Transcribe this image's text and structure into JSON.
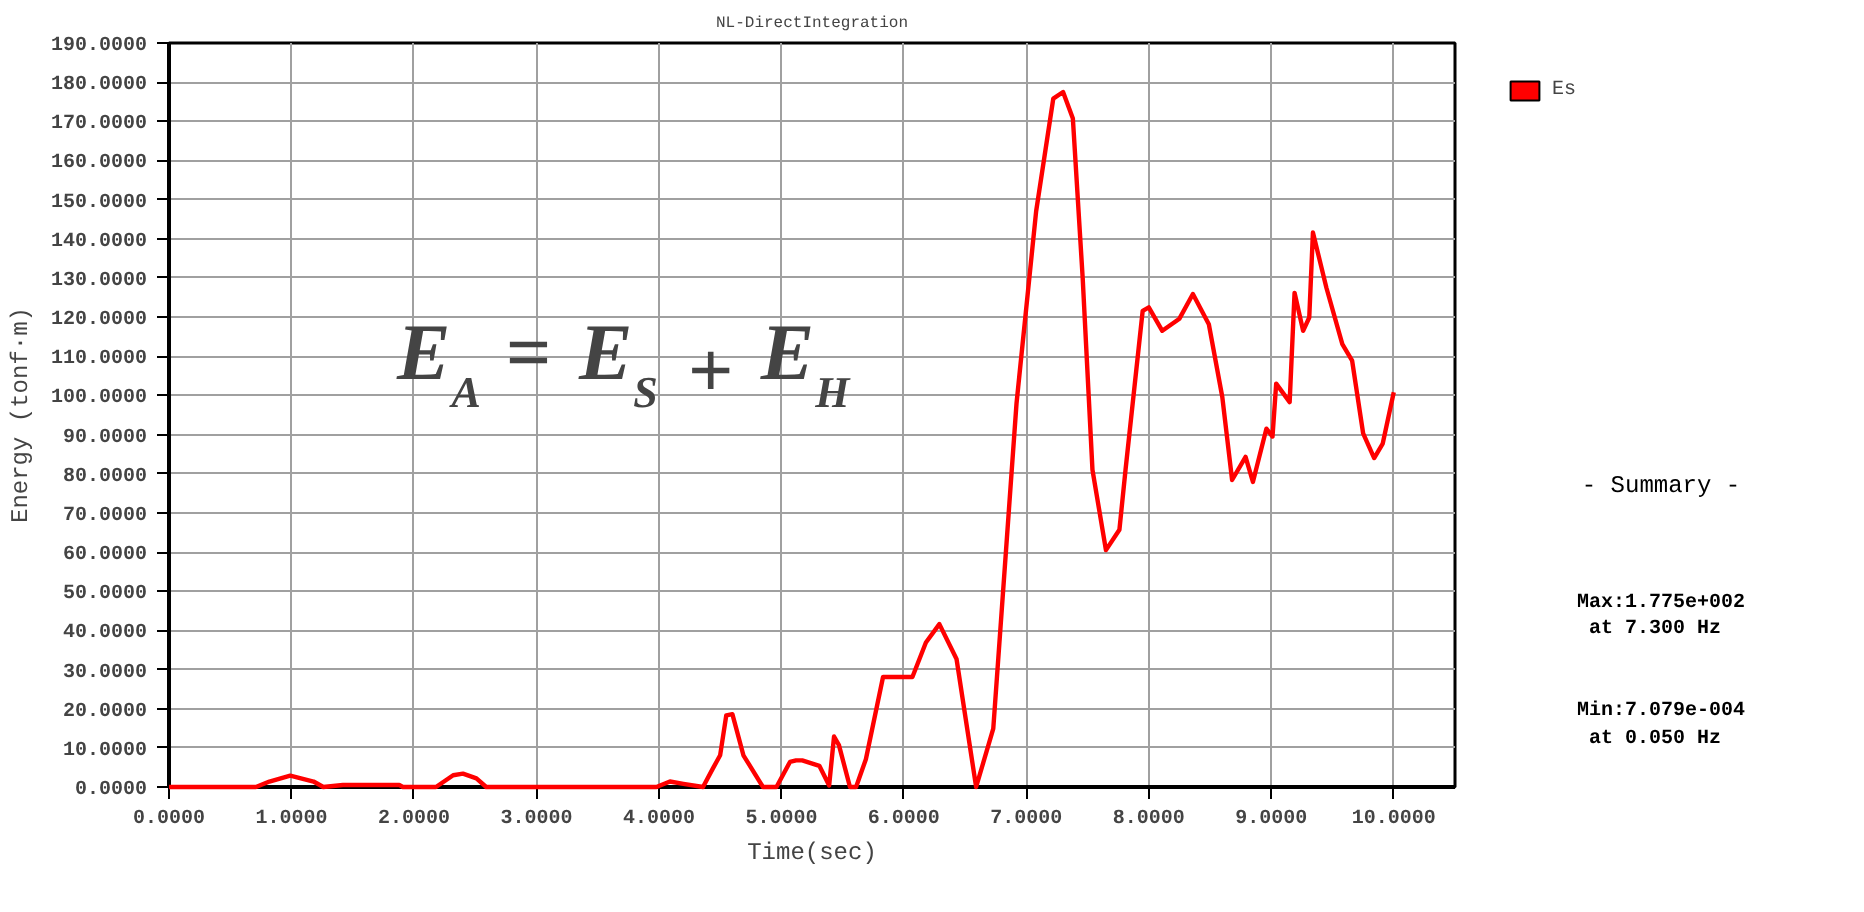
{
  "chart_data": {
    "type": "line",
    "title": "NL-DirectIntegration",
    "xlabel": "Time(sec)",
    "ylabel": "Energy (tonf·m)",
    "xlim": [
      0,
      10.5
    ],
    "ylim": [
      0,
      190
    ],
    "xticks": [
      {
        "value": 0,
        "label": "0.0000"
      },
      {
        "value": 1,
        "label": "1.0000"
      },
      {
        "value": 2,
        "label": "2.0000"
      },
      {
        "value": 3,
        "label": "3.0000"
      },
      {
        "value": 4,
        "label": "4.0000"
      },
      {
        "value": 5,
        "label": "5.0000"
      },
      {
        "value": 6,
        "label": "6.0000"
      },
      {
        "value": 7,
        "label": "7.0000"
      },
      {
        "value": 8,
        "label": "8.0000"
      },
      {
        "value": 9,
        "label": "9.0000"
      },
      {
        "value": 10,
        "label": "10.0000"
      }
    ],
    "yticks": [
      {
        "value": 0,
        "label": "0.0000"
      },
      {
        "value": 10,
        "label": "10.0000"
      },
      {
        "value": 20,
        "label": "20.0000"
      },
      {
        "value": 30,
        "label": "30.0000"
      },
      {
        "value": 40,
        "label": "40.0000"
      },
      {
        "value": 50,
        "label": "50.0000"
      },
      {
        "value": 60,
        "label": "60.0000"
      },
      {
        "value": 70,
        "label": "70.0000"
      },
      {
        "value": 80,
        "label": "80.0000"
      },
      {
        "value": 90,
        "label": "90.0000"
      },
      {
        "value": 100,
        "label": "100.0000"
      },
      {
        "value": 110,
        "label": "110.0000"
      },
      {
        "value": 120,
        "label": "120.0000"
      },
      {
        "value": 130,
        "label": "130.0000"
      },
      {
        "value": 140,
        "label": "140.0000"
      },
      {
        "value": 150,
        "label": "150.0000"
      },
      {
        "value": 160,
        "label": "160.0000"
      },
      {
        "value": 170,
        "label": "170.0000"
      },
      {
        "value": 180,
        "label": "180.0000"
      },
      {
        "value": 190,
        "label": "190.0000"
      }
    ],
    "grid": true,
    "legend": "top right",
    "marker": "none",
    "line_style": "solid",
    "series": [
      {
        "name": "Es",
        "color": "#ff0000",
        "x": [
          0,
          0.71,
          0.82,
          0.99,
          1.18,
          1.26,
          1.42,
          1.88,
          1.91,
          2.18,
          2.32,
          2.4,
          2.51,
          2.59,
          3.98,
          4.09,
          4.2,
          4.36,
          4.44,
          4.5,
          4.55,
          4.6,
          4.69,
          4.85,
          4.96,
          5.07,
          5.12,
          5.17,
          5.31,
          5.39,
          5.43,
          5.47,
          5.56,
          5.61,
          5.69,
          5.83,
          6.07,
          6.18,
          6.29,
          6.43,
          6.59,
          6.73,
          6.92,
          7.08,
          7.22,
          7.3,
          7.38,
          7.46,
          7.54,
          7.65,
          7.76,
          7.81,
          7.95,
          8.0,
          8.11,
          8.25,
          8.36,
          8.49,
          8.6,
          8.68,
          8.79,
          8.85,
          8.96,
          9.01,
          9.04,
          9.15,
          9.19,
          9.26,
          9.31,
          9.34,
          9.45,
          9.58,
          9.66,
          9.75,
          9.84,
          9.91,
          10.0
        ],
        "values": [
          0,
          0,
          1.4,
          2.9,
          1.4,
          0,
          0.5,
          0.5,
          0,
          0,
          3,
          3.4,
          2.2,
          0,
          0,
          1.4,
          0.8,
          0,
          4.7,
          8.1,
          18.3,
          18.6,
          8.1,
          0,
          0,
          6.4,
          6.8,
          6.8,
          5.4,
          0.4,
          12.9,
          10.7,
          0,
          0,
          7.1,
          28.1,
          28.1,
          36.9,
          41.6,
          32.7,
          0,
          14.9,
          98,
          147,
          175.8,
          177.5,
          170.7,
          130,
          81,
          60.5,
          65.7,
          81,
          121.6,
          122.5,
          116.5,
          119.6,
          125.9,
          118.2,
          99.6,
          78.4,
          84.3,
          77.9,
          91.5,
          89.5,
          103,
          98.3,
          126.2,
          116.5,
          119.9,
          141.6,
          127.5,
          113.1,
          108.9,
          90.3,
          84,
          87.7,
          100.8
        ]
      }
    ],
    "annotations": [
      {
        "text": "E$_{A}$ = E$_{S}$ + E$_{H}$"
      },
      "- Summary -",
      "Max:1.775e+002",
      "at  7.300 Hz",
      "Min:7.079e-004",
      "at  0.050 Hz"
    ]
  }
}
